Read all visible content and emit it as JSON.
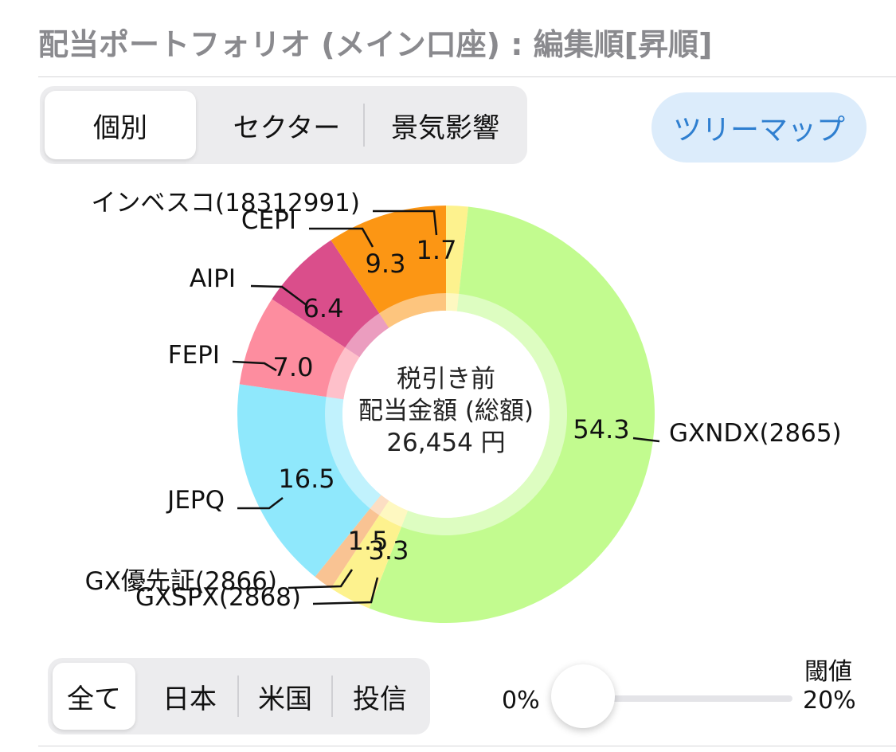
{
  "header": {
    "title": "配当ポートフォリオ (メイン口座) : 編集順[昇順]"
  },
  "view_tabs": [
    {
      "label": "個別",
      "active": true
    },
    {
      "label": "セクター",
      "active": false
    },
    {
      "label": "景気影響",
      "active": false
    }
  ],
  "treemap_button": {
    "label": "ツリーマップ"
  },
  "center": {
    "line1": "税引き前",
    "line2": "配当金額 (総額)",
    "line3": "26,454 円"
  },
  "filter_tabs": [
    {
      "label": "全て",
      "active": true
    },
    {
      "label": "日本",
      "active": false
    },
    {
      "label": "米国",
      "active": false
    },
    {
      "label": "投信",
      "active": false
    }
  ],
  "threshold": {
    "label": "閾値",
    "min_label": "0%",
    "max_label": "20%",
    "value_percent": 0
  },
  "chart_data": {
    "type": "pie",
    "style": "donut",
    "title": "",
    "series": [
      {
        "name": "インベスコ(18312991)",
        "value": 1.7,
        "value_label": "1.7",
        "color": "#fdf28e"
      },
      {
        "name": "GXNDX(2865)",
        "value": 54.3,
        "value_label": "54.3",
        "color": "#c2fb8f"
      },
      {
        "name": "GXSPX(2868)",
        "value": 3.3,
        "value_label": "3.3",
        "color": "#fdf28e"
      },
      {
        "name": "GX優先証(2866)",
        "value": 1.5,
        "value_label": "1.5",
        "color": "#f9c393"
      },
      {
        "name": "JEPQ",
        "value": 16.5,
        "value_label": "16.5",
        "color": "#8fe8fc"
      },
      {
        "name": "FEPI",
        "value": 7.0,
        "value_label": "7.0",
        "color": "#fd8d9f"
      },
      {
        "name": "AIPI",
        "value": 6.4,
        "value_label": "6.4",
        "color": "#da4e8b"
      },
      {
        "name": "CEPI",
        "value": 9.3,
        "value_label": "9.3",
        "color": "#fc9614"
      }
    ]
  }
}
